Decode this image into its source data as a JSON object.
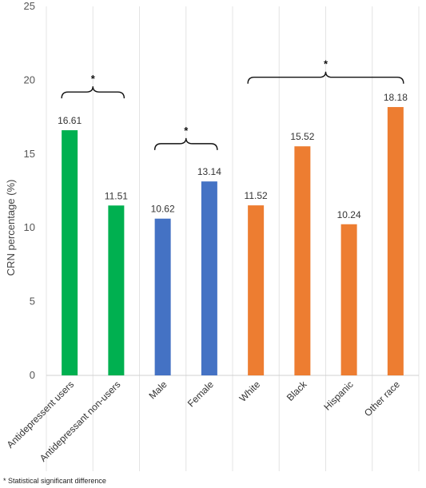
{
  "chart_data": {
    "type": "bar",
    "title": "",
    "xlabel": "",
    "ylabel": "CRN percentage (%)",
    "ylim": [
      0,
      25
    ],
    "yticks": [
      0,
      5,
      10,
      15,
      20,
      25
    ],
    "grid": "vertical category separators",
    "legend": "none",
    "categories": [
      "Antidepressent users",
      "Antidepressant non-users",
      "Male",
      "Female",
      "White",
      "Black",
      "Hispanic",
      "Other race"
    ],
    "values": [
      16.61,
      11.51,
      10.62,
      13.14,
      11.52,
      15.52,
      10.24,
      18.18
    ],
    "value_labels": [
      "16.61",
      "11.51",
      "10.62",
      "13.14",
      "11.52",
      "15.52",
      "10.24",
      "18.18"
    ],
    "bar_colors": [
      "#00b050",
      "#00b050",
      "#4472c4",
      "#4472c4",
      "#ed7d31",
      "#ed7d31",
      "#ed7d31",
      "#ed7d31"
    ],
    "significance_brackets": [
      {
        "from": 0,
        "to": 1,
        "label": "*",
        "level": 19.2
      },
      {
        "from": 2,
        "to": 3,
        "label": "*",
        "level": 15.7
      },
      {
        "from": 4,
        "to": 7,
        "label": "*",
        "level": 20.2
      }
    ]
  },
  "footnote": "* Statistical significant difference"
}
